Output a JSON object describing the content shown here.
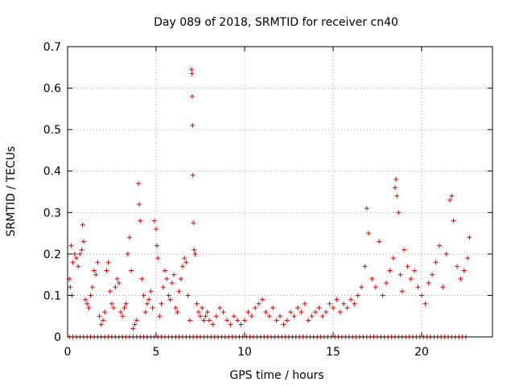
{
  "chart_data": {
    "type": "scatter",
    "title": "Day 089 of 2018, SRMTID for receiver cn40",
    "xlabel": "GPS time / hours",
    "ylabel": "SRMTID / TECUs",
    "xlim": [
      0,
      24
    ],
    "ylim": [
      0,
      0.7
    ],
    "xticks": [
      0,
      5,
      10,
      15,
      20
    ],
    "xtick_labels": [
      "0",
      "5",
      "10",
      "15",
      "20"
    ],
    "yticks": [
      0,
      0.1,
      0.2,
      0.3,
      0.4,
      0.5,
      0.6,
      0.7
    ],
    "ytick_labels": [
      "0",
      "0.1",
      "0.2",
      "0.3",
      "0.4",
      "0.5",
      "0.6",
      "0.7"
    ],
    "grid": true,
    "marker": "plus",
    "color": "#e00000",
    "series": [
      {
        "name": "SRMTID",
        "points": [
          [
            0.1,
            0.14
          ],
          [
            0.15,
            0.12
          ],
          [
            0.2,
            0.22
          ],
          [
            0.25,
            0.1
          ],
          [
            0.3,
            0.18
          ],
          [
            0.4,
            0.2
          ],
          [
            0.5,
            0.19
          ],
          [
            0.6,
            0.17
          ],
          [
            0.7,
            0.2
          ],
          [
            0.8,
            0.21
          ],
          [
            0.85,
            0.27
          ],
          [
            0.9,
            0.23
          ],
          [
            1.0,
            0.09
          ],
          [
            1.1,
            0.08
          ],
          [
            1.2,
            0.07
          ],
          [
            1.3,
            0.1
          ],
          [
            1.4,
            0.12
          ],
          [
            1.5,
            0.16
          ],
          [
            1.6,
            0.15
          ],
          [
            1.7,
            0.18
          ],
          [
            1.8,
            0.05
          ],
          [
            1.9,
            0.03
          ],
          [
            2.0,
            0.04
          ],
          [
            2.1,
            0.06
          ],
          [
            2.2,
            0.16
          ],
          [
            2.3,
            0.18
          ],
          [
            2.4,
            0.11
          ],
          [
            2.5,
            0.08
          ],
          [
            2.6,
            0.07
          ],
          [
            2.7,
            0.12
          ],
          [
            2.8,
            0.14
          ],
          [
            2.9,
            0.13
          ],
          [
            3.0,
            0.06
          ],
          [
            3.1,
            0.05
          ],
          [
            3.2,
            0.07
          ],
          [
            3.3,
            0.08
          ],
          [
            3.4,
            0.2
          ],
          [
            3.5,
            0.24
          ],
          [
            3.6,
            0.16
          ],
          [
            3.7,
            0.02
          ],
          [
            3.8,
            0.03
          ],
          [
            3.9,
            0.04
          ],
          [
            4.0,
            0.37
          ],
          [
            4.05,
            0.32
          ],
          [
            4.1,
            0.28
          ],
          [
            4.2,
            0.14
          ],
          [
            4.3,
            0.1
          ],
          [
            4.4,
            0.06
          ],
          [
            4.5,
            0.08
          ],
          [
            4.6,
            0.09
          ],
          [
            4.7,
            0.11
          ],
          [
            4.8,
            0.07
          ],
          [
            4.9,
            0.28
          ],
          [
            5.0,
            0.26
          ],
          [
            5.05,
            0.22
          ],
          [
            5.1,
            0.19
          ],
          [
            5.2,
            0.05
          ],
          [
            5.3,
            0.08
          ],
          [
            5.4,
            0.12
          ],
          [
            5.5,
            0.16
          ],
          [
            5.6,
            0.14
          ],
          [
            5.7,
            0.1
          ],
          [
            5.8,
            0.09
          ],
          [
            5.9,
            0.13
          ],
          [
            6.0,
            0.15
          ],
          [
            6.1,
            0.07
          ],
          [
            6.2,
            0.06
          ],
          [
            6.3,
            0.11
          ],
          [
            6.4,
            0.14
          ],
          [
            6.5,
            0.17
          ],
          [
            6.6,
            0.19
          ],
          [
            6.7,
            0.18
          ],
          [
            6.8,
            0.1
          ],
          [
            6.9,
            0.04
          ],
          [
            7.0,
            0.645
          ],
          [
            7.02,
            0.635
          ],
          [
            7.04,
            0.58
          ],
          [
            7.06,
            0.51
          ],
          [
            7.08,
            0.39
          ],
          [
            7.1,
            0.275
          ],
          [
            7.15,
            0.21
          ],
          [
            7.2,
            0.2
          ],
          [
            7.3,
            0.08
          ],
          [
            7.4,
            0.06
          ],
          [
            7.5,
            0.05
          ],
          [
            7.6,
            0.07
          ],
          [
            7.7,
            0.04
          ],
          [
            7.8,
            0.05
          ],
          [
            7.9,
            0.06
          ],
          [
            8.0,
            0.04
          ],
          [
            8.2,
            0.03
          ],
          [
            8.4,
            0.05
          ],
          [
            8.6,
            0.07
          ],
          [
            8.8,
            0.06
          ],
          [
            9.0,
            0.04
          ],
          [
            9.2,
            0.03
          ],
          [
            9.4,
            0.05
          ],
          [
            9.6,
            0.04
          ],
          [
            9.8,
            0.03
          ],
          [
            10.0,
            0.04
          ],
          [
            10.2,
            0.06
          ],
          [
            10.4,
            0.05
          ],
          [
            10.6,
            0.07
          ],
          [
            10.8,
            0.08
          ],
          [
            11.0,
            0.09
          ],
          [
            11.2,
            0.06
          ],
          [
            11.4,
            0.05
          ],
          [
            11.6,
            0.07
          ],
          [
            11.8,
            0.04
          ],
          [
            12.0,
            0.05
          ],
          [
            12.2,
            0.03
          ],
          [
            12.4,
            0.04
          ],
          [
            12.6,
            0.06
          ],
          [
            12.8,
            0.05
          ],
          [
            13.0,
            0.07
          ],
          [
            13.2,
            0.06
          ],
          [
            13.4,
            0.08
          ],
          [
            13.6,
            0.04
          ],
          [
            13.8,
            0.05
          ],
          [
            14.0,
            0.06
          ],
          [
            14.2,
            0.07
          ],
          [
            14.4,
            0.05
          ],
          [
            14.6,
            0.06
          ],
          [
            14.8,
            0.08
          ],
          [
            15.0,
            0.07
          ],
          [
            15.2,
            0.09
          ],
          [
            15.4,
            0.06
          ],
          [
            15.6,
            0.08
          ],
          [
            15.8,
            0.07
          ],
          [
            16.0,
            0.09
          ],
          [
            16.2,
            0.08
          ],
          [
            16.4,
            0.1
          ],
          [
            16.6,
            0.12
          ],
          [
            16.8,
            0.17
          ],
          [
            16.9,
            0.31
          ],
          [
            17.0,
            0.25
          ],
          [
            17.2,
            0.14
          ],
          [
            17.4,
            0.12
          ],
          [
            17.6,
            0.23
          ],
          [
            17.8,
            0.1
          ],
          [
            18.0,
            0.13
          ],
          [
            18.2,
            0.16
          ],
          [
            18.4,
            0.19
          ],
          [
            18.5,
            0.36
          ],
          [
            18.55,
            0.38
          ],
          [
            18.6,
            0.34
          ],
          [
            18.7,
            0.3
          ],
          [
            18.8,
            0.15
          ],
          [
            18.9,
            0.11
          ],
          [
            19.0,
            0.21
          ],
          [
            19.2,
            0.17
          ],
          [
            19.4,
            0.14
          ],
          [
            19.6,
            0.16
          ],
          [
            19.8,
            0.12
          ],
          [
            20.0,
            0.1
          ],
          [
            20.2,
            0.08
          ],
          [
            20.4,
            0.13
          ],
          [
            20.6,
            0.15
          ],
          [
            20.8,
            0.18
          ],
          [
            21.0,
            0.22
          ],
          [
            21.2,
            0.12
          ],
          [
            21.4,
            0.2
          ],
          [
            21.6,
            0.33
          ],
          [
            21.7,
            0.34
          ],
          [
            21.8,
            0.28
          ],
          [
            22.0,
            0.17
          ],
          [
            22.2,
            0.14
          ],
          [
            22.4,
            0.16
          ],
          [
            22.6,
            0.19
          ],
          [
            22.7,
            0.24
          ]
        ]
      },
      {
        "name": "zero baseline",
        "x_start": 0.1,
        "x_end": 22.6,
        "x_step": 0.2,
        "y": 0
      }
    ]
  }
}
